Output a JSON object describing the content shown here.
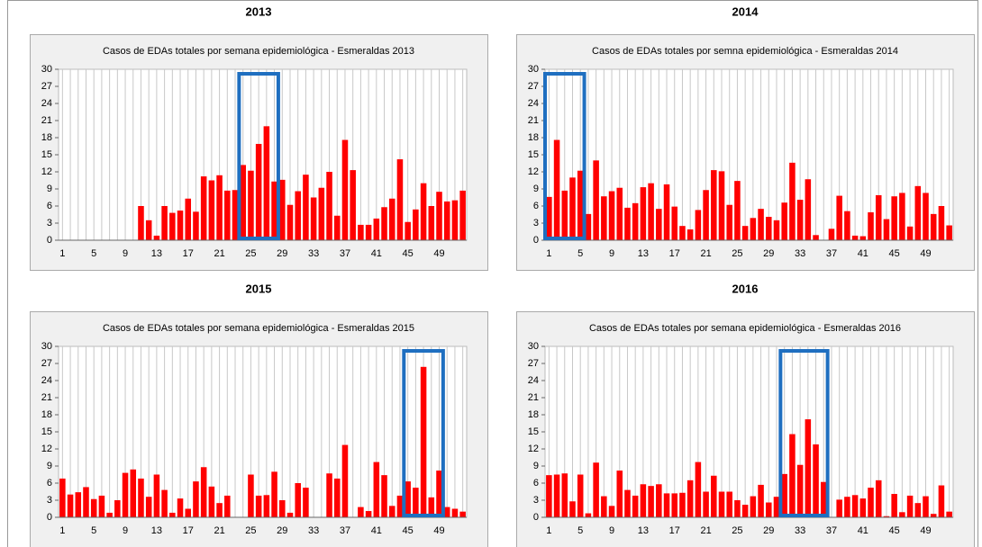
{
  "chart_data": [
    {
      "type": "bar",
      "title": "2013",
      "subtitle": "Casos de EDAs totales por semana epidemiológica - Esmeraldas 2013",
      "categories": [
        1,
        null,
        null,
        null,
        5,
        null,
        null,
        null,
        9,
        null,
        null,
        null,
        13,
        null,
        null,
        null,
        17,
        null,
        null,
        null,
        21,
        null,
        null,
        null,
        25,
        null,
        null,
        null,
        29,
        null,
        null,
        null,
        33,
        null,
        null,
        null,
        37,
        null,
        null,
        null,
        41,
        null,
        null,
        null,
        45,
        null,
        null,
        null,
        49,
        null,
        null,
        null
      ],
      "values": [
        0,
        0,
        0,
        0,
        0,
        0,
        0,
        0,
        0,
        0,
        6,
        3.5,
        0.8,
        6,
        4.8,
        5.2,
        7.3,
        5,
        11.2,
        10.5,
        11.4,
        8.7,
        8.8,
        13.2,
        12.2,
        16.9,
        20,
        10.3,
        10.6,
        6.2,
        8.6,
        11.5,
        7.5,
        9.2,
        12,
        4.3,
        17.6,
        12.3,
        2.7,
        2.7,
        3.8,
        5.8,
        7.3,
        14.2,
        3.2,
        5.4,
        10,
        6,
        8.5,
        6.8,
        7,
        8.7
      ],
      "color": "#ff0000",
      "ylim": [
        0,
        30
      ],
      "yticks": [
        0,
        3,
        6,
        9,
        12,
        15,
        18,
        21,
        24,
        27,
        30
      ],
      "grid": true,
      "highlight": [
        24,
        28
      ],
      "highlight_color": "#1f6fc0"
    },
    {
      "type": "bar",
      "title": "2014",
      "subtitle": "Casos de EDAs totales por semna epidemiológica - Esmeraldas 2014",
      "categories": [
        1,
        null,
        null,
        null,
        5,
        null,
        null,
        null,
        9,
        null,
        null,
        null,
        13,
        null,
        null,
        null,
        17,
        null,
        null,
        null,
        21,
        null,
        null,
        null,
        25,
        null,
        null,
        null,
        29,
        null,
        null,
        null,
        33,
        null,
        null,
        null,
        37,
        null,
        null,
        null,
        41,
        null,
        null,
        null,
        45,
        null,
        null,
        null,
        49,
        null,
        null,
        null
      ],
      "values": [
        7.6,
        17.6,
        8.7,
        11,
        12.2,
        4.6,
        14,
        7.7,
        8.6,
        9.2,
        5.7,
        6.5,
        9.3,
        10,
        5.5,
        9.8,
        5.9,
        2.5,
        1.9,
        5.3,
        8.8,
        12.3,
        12.1,
        6.2,
        10.4,
        2.5,
        3.9,
        5.5,
        4.1,
        3.5,
        6.6,
        13.6,
        7.1,
        10.7,
        0.9,
        0,
        2,
        7.8,
        5.1,
        0.8,
        0.7,
        4.9,
        7.9,
        3.7,
        7.7,
        8.3,
        2.4,
        9.5,
        8.3,
        4.6,
        6,
        2.6
      ],
      "color": "#ff0000",
      "ylim": [
        0,
        30
      ],
      "yticks": [
        0,
        3,
        6,
        9,
        12,
        15,
        18,
        21,
        24,
        27,
        30
      ],
      "grid": true,
      "highlight": [
        1,
        5
      ],
      "highlight_color": "#1f6fc0"
    },
    {
      "type": "bar",
      "title": "2015",
      "subtitle": "Casos de EDAs totales por semana epidemiológica - Esmeraldas 2015",
      "categories": [
        1,
        null,
        null,
        null,
        5,
        null,
        null,
        null,
        9,
        null,
        null,
        null,
        13,
        null,
        null,
        null,
        17,
        null,
        null,
        null,
        21,
        null,
        null,
        null,
        25,
        null,
        null,
        null,
        29,
        null,
        null,
        null,
        33,
        null,
        null,
        null,
        37,
        null,
        null,
        null,
        41,
        null,
        null,
        null,
        45,
        null,
        null,
        null,
        49,
        null,
        null,
        null
      ],
      "values": [
        6.8,
        4,
        4.4,
        5.3,
        3.2,
        3.8,
        0.8,
        3,
        7.8,
        8.4,
        6.8,
        3.6,
        7.5,
        4.8,
        0.8,
        3.3,
        1.5,
        6.3,
        8.8,
        5.4,
        2.5,
        3.8,
        0,
        0,
        7.5,
        3.8,
        3.9,
        8,
        3,
        0.8,
        6,
        5.2,
        0,
        0,
        7.7,
        6.8,
        12.7,
        0,
        1.8,
        1.1,
        9.7,
        7.4,
        2,
        3.8,
        6.3,
        5.2,
        26.4,
        3.5,
        8.2,
        1.8,
        1.5,
        1
      ],
      "color": "#ff0000",
      "ylim": [
        0,
        30
      ],
      "yticks": [
        0,
        3,
        6,
        9,
        12,
        15,
        18,
        21,
        24,
        27,
        30
      ],
      "grid": true,
      "highlight": [
        45,
        49
      ],
      "highlight_color": "#1f6fc0"
    },
    {
      "type": "bar",
      "title": "2016",
      "subtitle": "Casos de EDAs totales por semana epidemiológica - Esmeraldas 2016",
      "categories": [
        1,
        null,
        null,
        null,
        5,
        null,
        null,
        null,
        9,
        null,
        null,
        null,
        13,
        null,
        null,
        null,
        17,
        null,
        null,
        null,
        21,
        null,
        null,
        null,
        25,
        null,
        null,
        null,
        29,
        null,
        null,
        null,
        33,
        null,
        null,
        null,
        37,
        null,
        null,
        null,
        41,
        null,
        null,
        null,
        45,
        null,
        null,
        null,
        49,
        null,
        null,
        null
      ],
      "values": [
        7.4,
        7.5,
        7.7,
        2.8,
        7.5,
        0.7,
        9.6,
        3.7,
        2,
        8.2,
        4.8,
        3.8,
        5.8,
        5.5,
        5.8,
        4.2,
        4.2,
        4.3,
        6.5,
        9.7,
        4.5,
        7.3,
        4.5,
        4.5,
        3,
        2.2,
        3.7,
        5.7,
        2.6,
        3.6,
        7.6,
        14.6,
        9.2,
        17.2,
        12.8,
        6.2,
        0,
        3.1,
        3.6,
        3.9,
        3.3,
        5.2,
        6.5,
        0.2,
        4.1,
        0.9,
        3.8,
        2.5,
        3.7,
        0.6,
        5.6,
        1
      ],
      "color": "#ff0000",
      "ylim": [
        0,
        30
      ],
      "yticks": [
        0,
        3,
        6,
        9,
        12,
        15,
        18,
        21,
        24,
        27,
        30
      ],
      "grid": true,
      "highlight": [
        31,
        36
      ],
      "highlight_color": "#1f6fc0"
    }
  ]
}
